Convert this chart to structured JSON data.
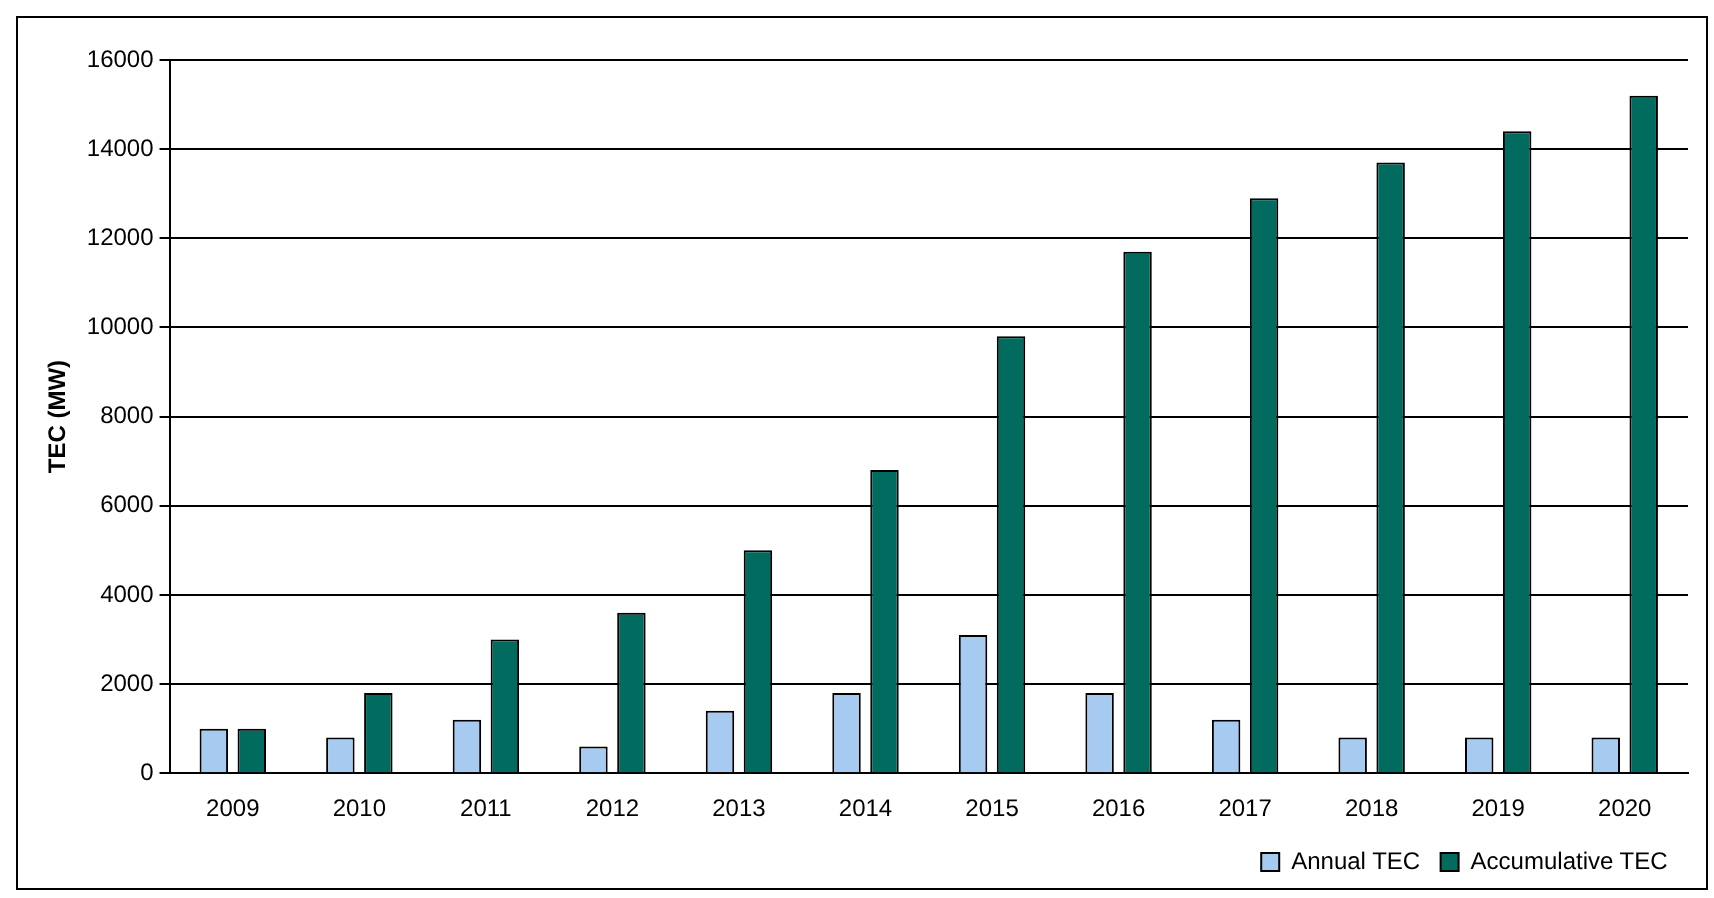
{
  "chart_data": {
    "type": "bar",
    "ylabel": "TEC (MW)",
    "categories": [
      "2009",
      "2010",
      "2011",
      "2012",
      "2013",
      "2014",
      "2015",
      "2016",
      "2017",
      "2018",
      "2019",
      "2020"
    ],
    "series": [
      {
        "name": "Annual TEC",
        "color": "#a6caf0",
        "values": [
          1000,
          800,
          1200,
          600,
          1400,
          1800,
          3100,
          1800,
          1200,
          800,
          800,
          800
        ]
      },
      {
        "name": "Accumulative TEC",
        "color": "#006b5e",
        "values": [
          1000,
          1800,
          3000,
          3600,
          5000,
          6800,
          9800,
          11700,
          12900,
          13700,
          14400,
          15200
        ]
      }
    ],
    "ylim": [
      0,
      16000
    ],
    "yticks": [
      0,
      2000,
      4000,
      6000,
      8000,
      10000,
      12000,
      14000,
      16000
    ],
    "grid": "y",
    "legend": "bottom right"
  }
}
